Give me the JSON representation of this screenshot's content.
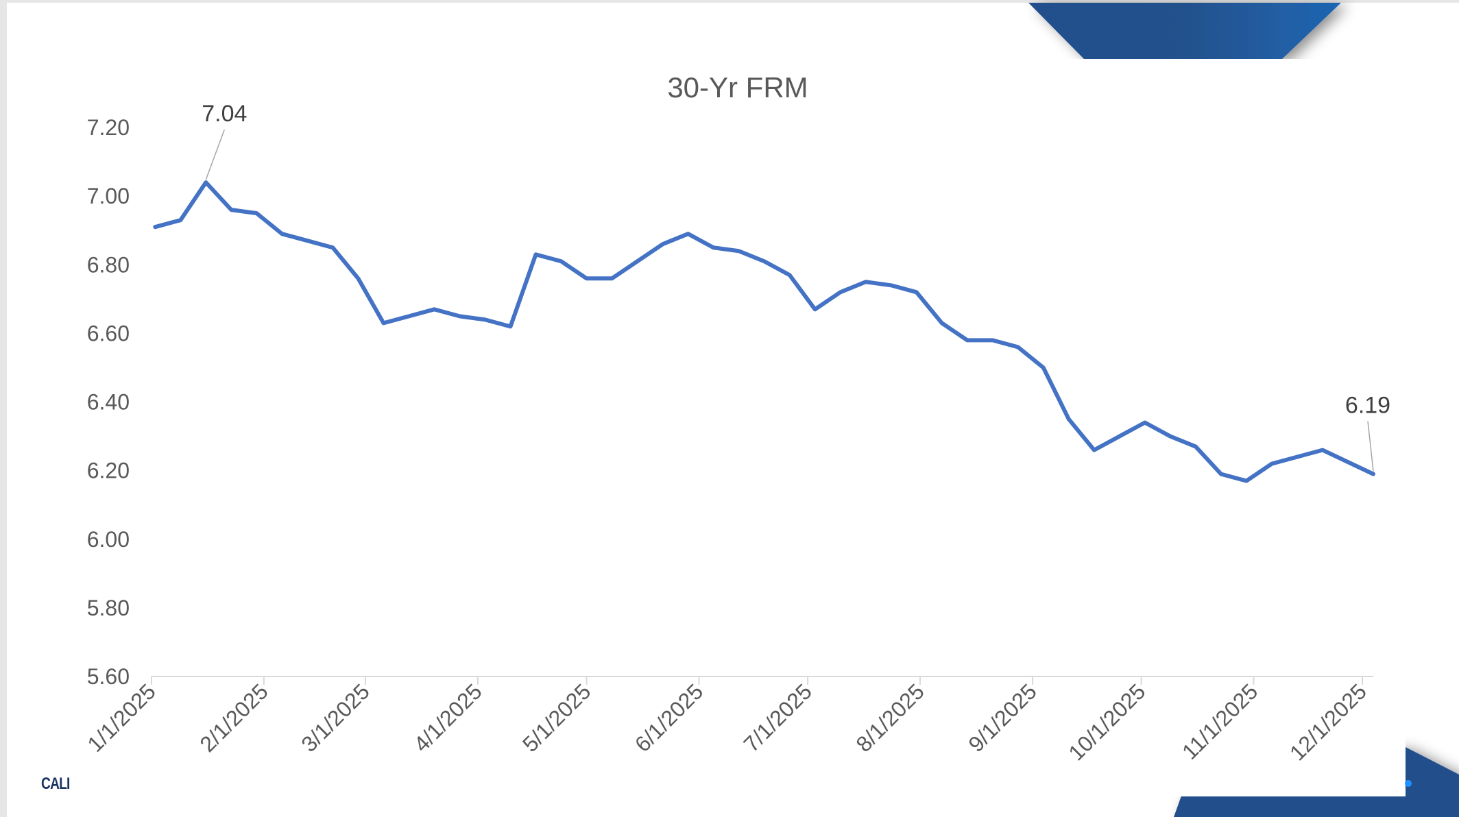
{
  "slide": {
    "logo_text": "CALI",
    "brand_color": "#23508c",
    "accent_color": "#1e63ae"
  },
  "chart_data": {
    "type": "line",
    "title": "30-Yr FRM",
    "xlabel": "",
    "ylabel": "",
    "ylim": [
      5.6,
      7.2
    ],
    "yticks": [
      "5.60",
      "5.80",
      "6.00",
      "6.20",
      "6.40",
      "6.60",
      "6.80",
      "7.00",
      "7.20"
    ],
    "xticks": [
      "1/1/2025",
      "2/1/2025",
      "3/1/2025",
      "4/1/2025",
      "5/1/2025",
      "6/1/2025",
      "7/1/2025",
      "8/1/2025",
      "9/1/2025",
      "10/1/2025",
      "11/1/2025",
      "12/1/2025"
    ],
    "xlim": [
      "2025-01-01",
      "2025-12-04"
    ],
    "grid": false,
    "legend": "none",
    "series": [
      {
        "name": "30-Yr FRM",
        "color": "#4472c4",
        "x": [
          "2025-01-02",
          "2025-01-09",
          "2025-01-16",
          "2025-01-23",
          "2025-01-30",
          "2025-02-06",
          "2025-02-13",
          "2025-02-20",
          "2025-02-27",
          "2025-03-06",
          "2025-03-13",
          "2025-03-20",
          "2025-03-27",
          "2025-04-03",
          "2025-04-10",
          "2025-04-17",
          "2025-04-24",
          "2025-05-01",
          "2025-05-08",
          "2025-05-15",
          "2025-05-22",
          "2025-05-29",
          "2025-06-05",
          "2025-06-12",
          "2025-06-19",
          "2025-06-26",
          "2025-07-03",
          "2025-07-10",
          "2025-07-17",
          "2025-07-24",
          "2025-07-31",
          "2025-08-07",
          "2025-08-14",
          "2025-08-21",
          "2025-08-28",
          "2025-09-04",
          "2025-09-11",
          "2025-09-18",
          "2025-09-25",
          "2025-10-02",
          "2025-10-09",
          "2025-10-16",
          "2025-10-23",
          "2025-10-30",
          "2025-11-06",
          "2025-11-13",
          "2025-11-20",
          "2025-11-26",
          "2025-12-04"
        ],
        "values": [
          6.91,
          6.93,
          7.04,
          6.96,
          6.95,
          6.89,
          6.87,
          6.85,
          6.76,
          6.63,
          6.65,
          6.67,
          6.65,
          6.64,
          6.62,
          6.83,
          6.81,
          6.76,
          6.76,
          6.81,
          6.86,
          6.89,
          6.85,
          6.84,
          6.81,
          6.77,
          6.67,
          6.72,
          6.75,
          6.74,
          6.72,
          6.63,
          6.58,
          6.58,
          6.56,
          6.5,
          6.35,
          6.26,
          6.3,
          6.34,
          6.3,
          6.27,
          6.19,
          6.17,
          6.22,
          6.24,
          6.26,
          6.23,
          6.19
        ]
      }
    ],
    "annotations": [
      {
        "index": 2,
        "text": "7.04"
      },
      {
        "index": 48,
        "text": "6.19"
      }
    ]
  }
}
